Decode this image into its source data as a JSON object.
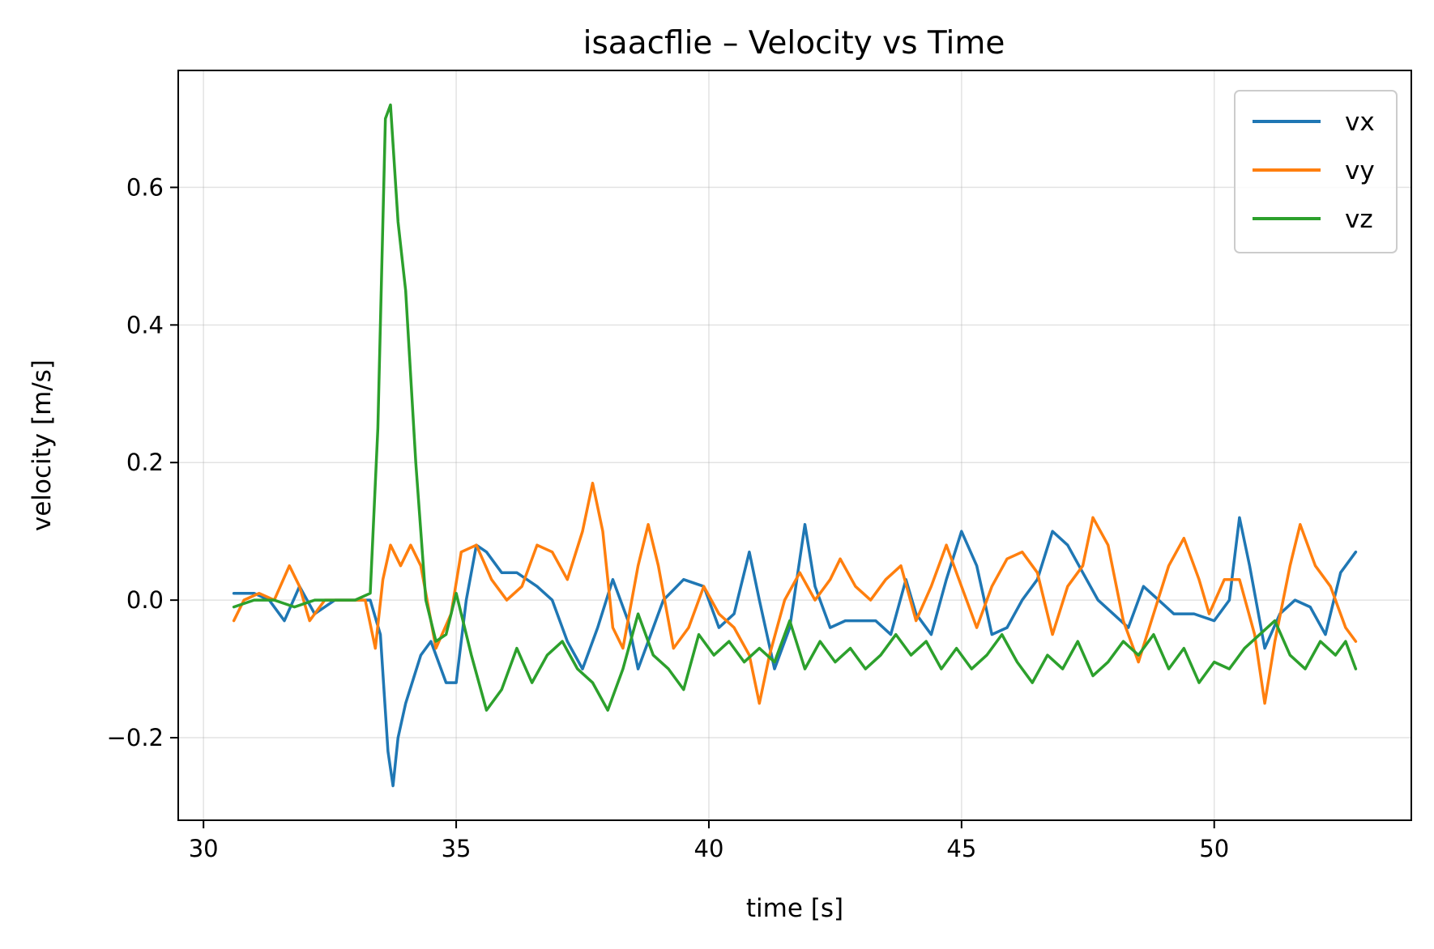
{
  "chart_data": {
    "type": "line",
    "title": "isaacflie – Velocity vs Time",
    "xlabel": "time [s]",
    "ylabel": "velocity [m/s]",
    "xlim": [
      29.5,
      53.9
    ],
    "ylim": [
      -0.32,
      0.77
    ],
    "xticks": [
      30,
      35,
      40,
      45,
      50
    ],
    "xtick_labels": [
      "30",
      "35",
      "40",
      "45",
      "50"
    ],
    "yticks": [
      -0.2,
      0.0,
      0.2,
      0.4,
      0.6
    ],
    "ytick_labels": [
      "−0.2",
      "0.0",
      "0.2",
      "0.4",
      "0.6"
    ],
    "grid": true,
    "legend": "top-right",
    "series": [
      {
        "name": "vx",
        "color": "#1f77b4",
        "points": [
          [
            30.6,
            0.01
          ],
          [
            31.0,
            0.01
          ],
          [
            31.3,
            0.0
          ],
          [
            31.6,
            -0.03
          ],
          [
            31.9,
            0.02
          ],
          [
            32.2,
            -0.02
          ],
          [
            32.6,
            0.0
          ],
          [
            33.0,
            0.0
          ],
          [
            33.3,
            0.0
          ],
          [
            33.5,
            -0.05
          ],
          [
            33.65,
            -0.22
          ],
          [
            33.75,
            -0.27
          ],
          [
            33.85,
            -0.2
          ],
          [
            34.0,
            -0.15
          ],
          [
            34.3,
            -0.08
          ],
          [
            34.5,
            -0.06
          ],
          [
            34.8,
            -0.12
          ],
          [
            35.0,
            -0.12
          ],
          [
            35.2,
            0.0
          ],
          [
            35.4,
            0.08
          ],
          [
            35.6,
            0.07
          ],
          [
            35.9,
            0.04
          ],
          [
            36.2,
            0.04
          ],
          [
            36.6,
            0.02
          ],
          [
            36.9,
            0.0
          ],
          [
            37.2,
            -0.06
          ],
          [
            37.5,
            -0.1
          ],
          [
            37.8,
            -0.04
          ],
          [
            38.1,
            0.03
          ],
          [
            38.4,
            -0.03
          ],
          [
            38.6,
            -0.1
          ],
          [
            38.8,
            -0.06
          ],
          [
            39.1,
            0.0
          ],
          [
            39.5,
            0.03
          ],
          [
            39.9,
            0.02
          ],
          [
            40.2,
            -0.04
          ],
          [
            40.5,
            -0.02
          ],
          [
            40.8,
            0.07
          ],
          [
            41.0,
            0.0
          ],
          [
            41.3,
            -0.1
          ],
          [
            41.6,
            -0.04
          ],
          [
            41.9,
            0.11
          ],
          [
            42.1,
            0.02
          ],
          [
            42.4,
            -0.04
          ],
          [
            42.7,
            -0.03
          ],
          [
            43.0,
            -0.03
          ],
          [
            43.3,
            -0.03
          ],
          [
            43.6,
            -0.05
          ],
          [
            43.9,
            0.03
          ],
          [
            44.1,
            -0.02
          ],
          [
            44.4,
            -0.05
          ],
          [
            44.7,
            0.03
          ],
          [
            45.0,
            0.1
          ],
          [
            45.3,
            0.05
          ],
          [
            45.6,
            -0.05
          ],
          [
            45.9,
            -0.04
          ],
          [
            46.2,
            0.0
          ],
          [
            46.5,
            0.03
          ],
          [
            46.8,
            0.1
          ],
          [
            47.1,
            0.08
          ],
          [
            47.4,
            0.04
          ],
          [
            47.7,
            0.0
          ],
          [
            48.0,
            -0.02
          ],
          [
            48.3,
            -0.04
          ],
          [
            48.6,
            0.02
          ],
          [
            48.9,
            0.0
          ],
          [
            49.2,
            -0.02
          ],
          [
            49.6,
            -0.02
          ],
          [
            50.0,
            -0.03
          ],
          [
            50.3,
            0.0
          ],
          [
            50.5,
            0.12
          ],
          [
            50.7,
            0.05
          ],
          [
            51.0,
            -0.07
          ],
          [
            51.3,
            -0.02
          ],
          [
            51.6,
            0.0
          ],
          [
            51.9,
            -0.01
          ],
          [
            52.2,
            -0.05
          ],
          [
            52.5,
            0.04
          ],
          [
            52.8,
            0.07
          ]
        ]
      },
      {
        "name": "vy",
        "color": "#ff7f0e",
        "points": [
          [
            30.6,
            -0.03
          ],
          [
            30.8,
            0.0
          ],
          [
            31.1,
            0.01
          ],
          [
            31.4,
            0.0
          ],
          [
            31.7,
            0.05
          ],
          [
            31.9,
            0.02
          ],
          [
            32.1,
            -0.03
          ],
          [
            32.4,
            0.0
          ],
          [
            32.8,
            0.0
          ],
          [
            33.2,
            0.0
          ],
          [
            33.4,
            -0.07
          ],
          [
            33.55,
            0.03
          ],
          [
            33.7,
            0.08
          ],
          [
            33.9,
            0.05
          ],
          [
            34.1,
            0.08
          ],
          [
            34.3,
            0.05
          ],
          [
            34.6,
            -0.07
          ],
          [
            34.9,
            -0.02
          ],
          [
            35.1,
            0.07
          ],
          [
            35.4,
            0.08
          ],
          [
            35.7,
            0.03
          ],
          [
            36.0,
            0.0
          ],
          [
            36.3,
            0.02
          ],
          [
            36.6,
            0.08
          ],
          [
            36.9,
            0.07
          ],
          [
            37.2,
            0.03
          ],
          [
            37.5,
            0.1
          ],
          [
            37.7,
            0.17
          ],
          [
            37.9,
            0.1
          ],
          [
            38.1,
            -0.04
          ],
          [
            38.3,
            -0.07
          ],
          [
            38.6,
            0.05
          ],
          [
            38.8,
            0.11
          ],
          [
            39.0,
            0.05
          ],
          [
            39.3,
            -0.07
          ],
          [
            39.6,
            -0.04
          ],
          [
            39.9,
            0.02
          ],
          [
            40.2,
            -0.02
          ],
          [
            40.5,
            -0.04
          ],
          [
            40.8,
            -0.08
          ],
          [
            41.0,
            -0.15
          ],
          [
            41.2,
            -0.08
          ],
          [
            41.5,
            0.0
          ],
          [
            41.8,
            0.04
          ],
          [
            42.1,
            0.0
          ],
          [
            42.4,
            0.03
          ],
          [
            42.6,
            0.06
          ],
          [
            42.9,
            0.02
          ],
          [
            43.2,
            0.0
          ],
          [
            43.5,
            0.03
          ],
          [
            43.8,
            0.05
          ],
          [
            44.1,
            -0.03
          ],
          [
            44.4,
            0.02
          ],
          [
            44.7,
            0.08
          ],
          [
            45.0,
            0.02
          ],
          [
            45.3,
            -0.04
          ],
          [
            45.6,
            0.02
          ],
          [
            45.9,
            0.06
          ],
          [
            46.2,
            0.07
          ],
          [
            46.5,
            0.04
          ],
          [
            46.8,
            -0.05
          ],
          [
            47.1,
            0.02
          ],
          [
            47.4,
            0.05
          ],
          [
            47.6,
            0.12
          ],
          [
            47.9,
            0.08
          ],
          [
            48.2,
            -0.03
          ],
          [
            48.5,
            -0.09
          ],
          [
            48.8,
            -0.02
          ],
          [
            49.1,
            0.05
          ],
          [
            49.4,
            0.09
          ],
          [
            49.7,
            0.03
          ],
          [
            49.9,
            -0.02
          ],
          [
            50.2,
            0.03
          ],
          [
            50.5,
            0.03
          ],
          [
            50.8,
            -0.05
          ],
          [
            51.0,
            -0.15
          ],
          [
            51.2,
            -0.06
          ],
          [
            51.5,
            0.05
          ],
          [
            51.7,
            0.11
          ],
          [
            52.0,
            0.05
          ],
          [
            52.3,
            0.02
          ],
          [
            52.6,
            -0.04
          ],
          [
            52.8,
            -0.06
          ]
        ]
      },
      {
        "name": "vz",
        "color": "#2ca02c",
        "points": [
          [
            30.6,
            -0.01
          ],
          [
            31.0,
            0.0
          ],
          [
            31.4,
            0.0
          ],
          [
            31.8,
            -0.01
          ],
          [
            32.2,
            0.0
          ],
          [
            32.6,
            0.0
          ],
          [
            33.0,
            0.0
          ],
          [
            33.3,
            0.01
          ],
          [
            33.45,
            0.25
          ],
          [
            33.6,
            0.7
          ],
          [
            33.7,
            0.72
          ],
          [
            33.85,
            0.55
          ],
          [
            34.0,
            0.45
          ],
          [
            34.2,
            0.2
          ],
          [
            34.4,
            0.0
          ],
          [
            34.6,
            -0.06
          ],
          [
            34.8,
            -0.05
          ],
          [
            35.0,
            0.01
          ],
          [
            35.3,
            -0.08
          ],
          [
            35.6,
            -0.16
          ],
          [
            35.9,
            -0.13
          ],
          [
            36.2,
            -0.07
          ],
          [
            36.5,
            -0.12
          ],
          [
            36.8,
            -0.08
          ],
          [
            37.1,
            -0.06
          ],
          [
            37.4,
            -0.1
          ],
          [
            37.7,
            -0.12
          ],
          [
            38.0,
            -0.16
          ],
          [
            38.3,
            -0.1
          ],
          [
            38.6,
            -0.02
          ],
          [
            38.9,
            -0.08
          ],
          [
            39.2,
            -0.1
          ],
          [
            39.5,
            -0.13
          ],
          [
            39.8,
            -0.05
          ],
          [
            40.1,
            -0.08
          ],
          [
            40.4,
            -0.06
          ],
          [
            40.7,
            -0.09
          ],
          [
            41.0,
            -0.07
          ],
          [
            41.3,
            -0.09
          ],
          [
            41.6,
            -0.03
          ],
          [
            41.9,
            -0.1
          ],
          [
            42.2,
            -0.06
          ],
          [
            42.5,
            -0.09
          ],
          [
            42.8,
            -0.07
          ],
          [
            43.1,
            -0.1
          ],
          [
            43.4,
            -0.08
          ],
          [
            43.7,
            -0.05
          ],
          [
            44.0,
            -0.08
          ],
          [
            44.3,
            -0.06
          ],
          [
            44.6,
            -0.1
          ],
          [
            44.9,
            -0.07
          ],
          [
            45.2,
            -0.1
          ],
          [
            45.5,
            -0.08
          ],
          [
            45.8,
            -0.05
          ],
          [
            46.1,
            -0.09
          ],
          [
            46.4,
            -0.12
          ],
          [
            46.7,
            -0.08
          ],
          [
            47.0,
            -0.1
          ],
          [
            47.3,
            -0.06
          ],
          [
            47.6,
            -0.11
          ],
          [
            47.9,
            -0.09
          ],
          [
            48.2,
            -0.06
          ],
          [
            48.5,
            -0.08
          ],
          [
            48.8,
            -0.05
          ],
          [
            49.1,
            -0.1
          ],
          [
            49.4,
            -0.07
          ],
          [
            49.7,
            -0.12
          ],
          [
            50.0,
            -0.09
          ],
          [
            50.3,
            -0.1
          ],
          [
            50.6,
            -0.07
          ],
          [
            50.9,
            -0.05
          ],
          [
            51.2,
            -0.03
          ],
          [
            51.5,
            -0.08
          ],
          [
            51.8,
            -0.1
          ],
          [
            52.1,
            -0.06
          ],
          [
            52.4,
            -0.08
          ],
          [
            52.6,
            -0.06
          ],
          [
            52.8,
            -0.1
          ]
        ]
      }
    ]
  }
}
